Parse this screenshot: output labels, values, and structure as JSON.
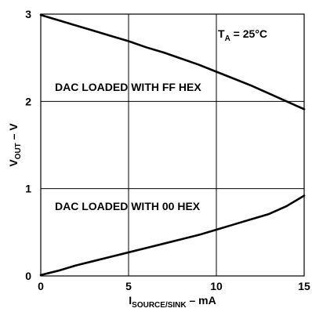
{
  "chart_data": {
    "type": "line",
    "title": "",
    "xlabel": {
      "main": "I",
      "sub": "SOURCE/SINK",
      "rest": " – mA"
    },
    "ylabel": {
      "main": "V",
      "sub": "OUT",
      "rest": " – V"
    },
    "xlim": [
      0,
      15
    ],
    "ylim": [
      0,
      3
    ],
    "xticks": [
      "0",
      "5",
      "10",
      "15"
    ],
    "yticks": [
      "0",
      "1",
      "2",
      "3"
    ],
    "grid": true,
    "annotations": {
      "condition": {
        "main": "T",
        "sub": "A",
        "rest": " = 25°C"
      },
      "ff": "DAC LOADED WITH FF HEX",
      "zero": "DAC LOADED WITH 00 HEX"
    },
    "series": [
      {
        "x": [
          0,
          1,
          2,
          3,
          4,
          5,
          6,
          7,
          8,
          9,
          10,
          11,
          12,
          13,
          14,
          15
        ],
        "y": [
          2.99,
          2.93,
          2.87,
          2.81,
          2.75,
          2.69,
          2.62,
          2.56,
          2.49,
          2.42,
          2.34,
          2.26,
          2.18,
          2.09,
          2.0,
          1.91
        ]
      },
      {
        "x": [
          0,
          1,
          2,
          3,
          4,
          5,
          6,
          7,
          8,
          9,
          10,
          11,
          12,
          13,
          14,
          15
        ],
        "y": [
          0.01,
          0.06,
          0.12,
          0.17,
          0.22,
          0.27,
          0.32,
          0.37,
          0.42,
          0.47,
          0.53,
          0.59,
          0.65,
          0.71,
          0.8,
          0.92
        ]
      }
    ]
  }
}
